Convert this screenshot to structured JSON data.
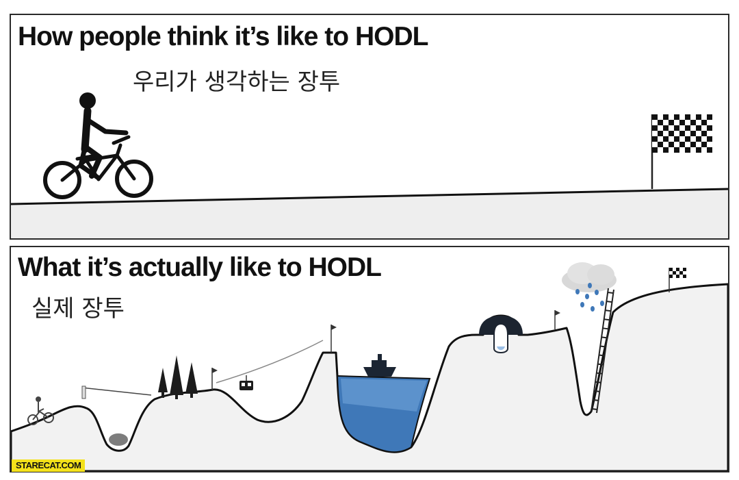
{
  "panels": {
    "top": {
      "title": "How people think it’s like to HODL",
      "subtitle": "우리가 생각하는 장투"
    },
    "bottom": {
      "title": "What it’s actually like to HODL",
      "subtitle": "실제 장투"
    }
  },
  "watermark": "STARECAT.COM",
  "icons": [
    "cyclist-icon",
    "checkered-flag-icon",
    "pine-tree-icon",
    "cable-car-icon",
    "boat-icon",
    "rain-cloud-icon",
    "ladder-icon",
    "bridge-icon"
  ],
  "colors": {
    "water": "#3f78b8",
    "ink": "#111111",
    "hill": "#f4f4f4",
    "watermark_bg": "#f4e11b"
  }
}
